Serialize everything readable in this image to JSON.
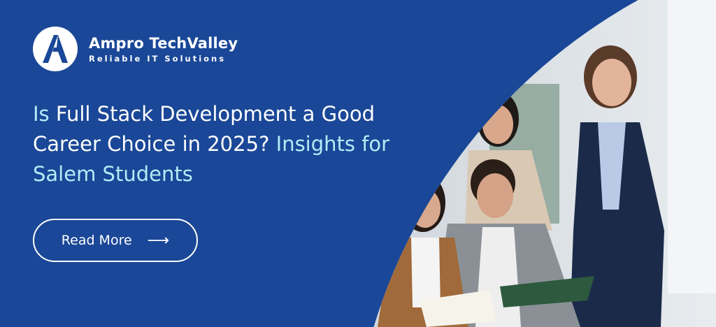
{
  "brand": {
    "name": "Ampro TechValley",
    "tagline": "Reliable IT Solutions",
    "logo_icon": "stylized-letter-a"
  },
  "headline": {
    "part1_accent": "Is",
    "part2": " Full Stack Development a Good Career Choice in 2025?",
    "part3_accent": " Insights for Salem Students"
  },
  "cta": {
    "label": "Read More",
    "icon": "arrow-right-icon"
  },
  "colors": {
    "background": "#1a4797",
    "accent": "#b3ecf7",
    "text": "#ffffff"
  }
}
